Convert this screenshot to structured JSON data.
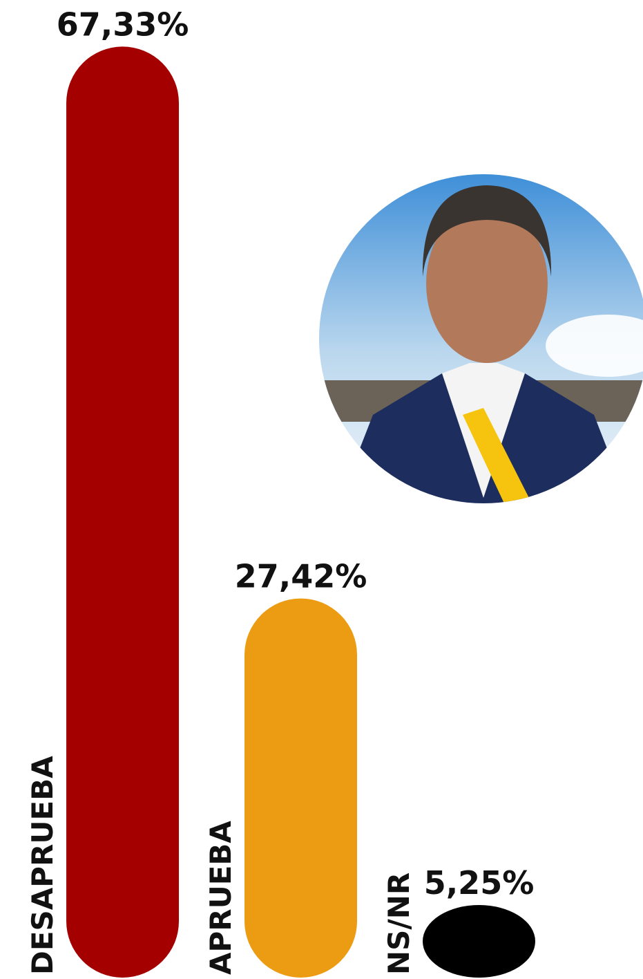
{
  "chart_data": {
    "type": "bar",
    "categories": [
      "DESAPRUEBA",
      "APRUEBA",
      "NS/NR"
    ],
    "values": [
      67.33,
      27.42,
      5.25
    ],
    "value_labels": [
      "67,33%",
      "27,42%",
      "5,25%"
    ],
    "colors": [
      "#a50000",
      "#ec9c12",
      "#000000"
    ]
  }
}
